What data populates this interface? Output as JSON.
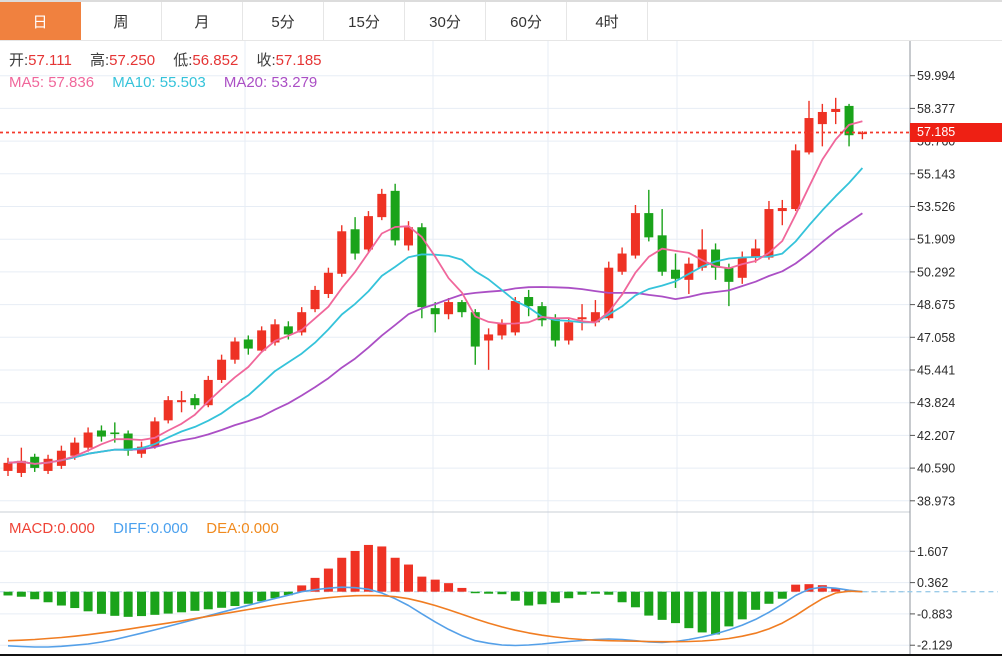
{
  "tabs": [
    {
      "label": "日",
      "active": true
    },
    {
      "label": "周",
      "active": false
    },
    {
      "label": "月",
      "active": false
    },
    {
      "label": "5分",
      "active": false
    },
    {
      "label": "15分",
      "active": false
    },
    {
      "label": "30分",
      "active": false
    },
    {
      "label": "60分",
      "active": false
    },
    {
      "label": "4时",
      "active": false
    }
  ],
  "legend": {
    "ohlc": [
      {
        "label": "开:",
        "value": "57.111"
      },
      {
        "label": "高:",
        "value": "57.250"
      },
      {
        "label": "低:",
        "value": "56.852"
      },
      {
        "label": "收:",
        "value": "57.185"
      }
    ],
    "ma": [
      {
        "label": "MA5:",
        "value": "57.836",
        "color": "#f0679b"
      },
      {
        "label": "MA10:",
        "value": "55.503",
        "color": "#35c3da"
      },
      {
        "label": "MA20:",
        "value": "53.279",
        "color": "#ab4fc5"
      }
    ],
    "macd": [
      {
        "label": "MACD:",
        "value": "0.000",
        "color": "#ef4437"
      },
      {
        "label": "DIFF:",
        "value": "0.000",
        "color": "#4aa0ee"
      },
      {
        "label": "DEA:",
        "value": "0.000",
        "color": "#f08a1e"
      }
    ]
  },
  "axis": {
    "price_ticks": [
      "59.994",
      "58.377",
      "56.760",
      "55.143",
      "53.526",
      "51.909",
      "50.292",
      "48.675",
      "47.058",
      "45.441",
      "43.824",
      "42.207",
      "40.590",
      "38.973"
    ],
    "macd_ticks": [
      "1.607",
      "0.362",
      "-0.883",
      "-2.129"
    ],
    "last_price": "57.185"
  },
  "colors": {
    "up": "#ee3224",
    "down": "#1aa31a",
    "ma5": "#f0679b",
    "ma10": "#35c3da",
    "ma20": "#ab4fc5",
    "diff": "#55a0e8",
    "dea": "#f07d22",
    "grid": "#e7edf5",
    "axis_text": "#2b2b2b",
    "price_line": "#f4392b",
    "badge_bg": "#ee2014"
  },
  "chart_data": {
    "type": "candlestick",
    "note": "Chinese convention: red = up candle, green = down candle. ohlc items are [open, high, low, close].",
    "timeframe_selected": "日",
    "price_axis_range": [
      38.973,
      59.994
    ],
    "price_tick_step": 1.617,
    "last_price": 57.185,
    "ma_periods": [
      5,
      10,
      20
    ],
    "ohlc": [
      [
        40.45,
        41.1,
        40.2,
        40.85
      ],
      [
        40.35,
        41.6,
        40.15,
        40.95
      ],
      [
        41.15,
        41.3,
        40.4,
        40.6
      ],
      [
        40.45,
        41.25,
        40.3,
        41.05
      ],
      [
        40.7,
        41.7,
        40.55,
        41.45
      ],
      [
        41.2,
        42.1,
        41.0,
        41.85
      ],
      [
        41.6,
        42.6,
        41.4,
        42.35
      ],
      [
        42.45,
        42.7,
        41.9,
        42.15
      ],
      [
        42.35,
        42.85,
        41.85,
        42.3
      ],
      [
        42.3,
        42.45,
        41.2,
        41.45
      ],
      [
        41.3,
        41.9,
        41.1,
        41.65
      ],
      [
        41.65,
        43.1,
        41.55,
        42.9
      ],
      [
        42.95,
        44.15,
        42.8,
        43.95
      ],
      [
        43.85,
        44.4,
        43.35,
        43.95
      ],
      [
        44.05,
        44.25,
        43.5,
        43.7
      ],
      [
        43.7,
        45.15,
        43.6,
        44.95
      ],
      [
        44.95,
        46.2,
        44.8,
        45.95
      ],
      [
        45.95,
        47.05,
        45.75,
        46.85
      ],
      [
        46.95,
        47.15,
        46.2,
        46.5
      ],
      [
        46.4,
        47.6,
        46.3,
        47.4
      ],
      [
        46.8,
        47.95,
        46.65,
        47.7
      ],
      [
        47.6,
        47.85,
        46.95,
        47.2
      ],
      [
        47.3,
        48.55,
        47.15,
        48.3
      ],
      [
        48.45,
        49.6,
        48.3,
        49.4
      ],
      [
        49.2,
        50.5,
        49.0,
        50.25
      ],
      [
        50.2,
        52.6,
        50.05,
        52.3
      ],
      [
        52.4,
        53.0,
        50.9,
        51.2
      ],
      [
        51.4,
        53.3,
        51.25,
        53.05
      ],
      [
        53.0,
        54.4,
        52.85,
        54.15
      ],
      [
        54.3,
        54.65,
        51.6,
        51.85
      ],
      [
        51.6,
        52.8,
        51.35,
        52.5
      ],
      [
        52.5,
        52.7,
        48.0,
        48.55
      ],
      [
        48.5,
        48.8,
        47.3,
        48.2
      ],
      [
        48.2,
        49.0,
        47.95,
        48.8
      ],
      [
        48.8,
        48.9,
        48.05,
        48.3
      ],
      [
        48.3,
        48.45,
        45.7,
        46.6
      ],
      [
        46.9,
        47.5,
        45.45,
        47.2
      ],
      [
        47.15,
        47.95,
        46.95,
        47.75
      ],
      [
        47.3,
        49.05,
        47.15,
        48.85
      ],
      [
        49.05,
        49.4,
        48.1,
        48.6
      ],
      [
        48.6,
        48.8,
        47.6,
        47.9
      ],
      [
        48.0,
        48.2,
        46.6,
        46.9
      ],
      [
        46.9,
        48.0,
        46.7,
        47.8
      ],
      [
        47.95,
        48.7,
        47.4,
        48.05
      ],
      [
        47.8,
        48.9,
        47.6,
        48.3
      ],
      [
        48.0,
        50.8,
        47.9,
        50.5
      ],
      [
        50.3,
        51.5,
        50.15,
        51.2
      ],
      [
        51.1,
        53.6,
        50.95,
        53.2
      ],
      [
        53.2,
        54.35,
        51.8,
        52.0
      ],
      [
        52.1,
        53.4,
        50.1,
        50.3
      ],
      [
        50.4,
        51.2,
        49.5,
        49.95
      ],
      [
        49.9,
        51.0,
        49.2,
        50.7
      ],
      [
        50.5,
        52.4,
        50.35,
        51.4
      ],
      [
        51.4,
        51.7,
        49.9,
        50.5
      ],
      [
        50.5,
        50.7,
        48.6,
        49.8
      ],
      [
        50.0,
        51.3,
        49.7,
        51.0
      ],
      [
        51.05,
        51.9,
        50.75,
        51.45
      ],
      [
        51.0,
        53.8,
        50.9,
        53.4
      ],
      [
        53.3,
        53.85,
        52.6,
        53.45
      ],
      [
        53.4,
        56.6,
        53.3,
        56.3
      ],
      [
        56.2,
        58.75,
        56.1,
        57.9
      ],
      [
        57.6,
        58.6,
        56.5,
        58.2
      ],
      [
        58.2,
        58.9,
        57.6,
        58.35
      ],
      [
        58.5,
        58.6,
        56.5,
        57.05
      ],
      [
        57.111,
        57.25,
        56.852,
        57.185
      ]
    ],
    "macd": {
      "axis_range": [
        -2.129,
        1.607
      ],
      "hist": [
        -0.15,
        -0.2,
        -0.3,
        -0.42,
        -0.55,
        -0.65,
        -0.78,
        -0.88,
        -0.96,
        -1.0,
        -0.97,
        -0.92,
        -0.87,
        -0.82,
        -0.76,
        -0.7,
        -0.64,
        -0.57,
        -0.48,
        -0.38,
        -0.26,
        -0.14,
        0.25,
        0.55,
        0.92,
        1.35,
        1.62,
        1.86,
        1.8,
        1.35,
        1.08,
        0.6,
        0.48,
        0.34,
        0.15,
        -0.06,
        -0.08,
        -0.1,
        -0.36,
        -0.55,
        -0.5,
        -0.44,
        -0.26,
        -0.12,
        -0.08,
        -0.12,
        -0.42,
        -0.62,
        -0.95,
        -1.12,
        -1.25,
        -1.45,
        -1.62,
        -1.7,
        -1.38,
        -1.1,
        -0.72,
        -0.48,
        -0.28,
        0.28,
        0.3,
        0.26,
        0.14,
        0.06,
        0.0
      ],
      "diff": [
        -2.15,
        -2.18,
        -2.2,
        -2.2,
        -2.17,
        -2.13,
        -2.08,
        -2.0,
        -1.9,
        -1.78,
        -1.65,
        -1.52,
        -1.38,
        -1.24,
        -1.1,
        -0.96,
        -0.82,
        -0.68,
        -0.54,
        -0.4,
        -0.27,
        -0.14,
        0.0,
        0.08,
        0.14,
        0.18,
        0.16,
        0.1,
        -0.05,
        -0.28,
        -0.55,
        -0.88,
        -1.2,
        -1.5,
        -1.75,
        -1.95,
        -2.05,
        -2.12,
        -2.14,
        -2.12,
        -2.08,
        -2.03,
        -1.98,
        -1.94,
        -1.9,
        -1.88,
        -1.9,
        -1.95,
        -2.0,
        -2.02,
        -1.98,
        -1.9,
        -1.8,
        -1.68,
        -1.52,
        -1.33,
        -1.1,
        -0.82,
        -0.5,
        -0.15,
        0.1,
        0.18,
        0.14,
        0.06,
        0.0
      ],
      "dea": [
        -1.95,
        -1.93,
        -1.9,
        -1.86,
        -1.82,
        -1.77,
        -1.71,
        -1.64,
        -1.57,
        -1.49,
        -1.41,
        -1.33,
        -1.25,
        -1.16,
        -1.07,
        -0.98,
        -0.89,
        -0.8,
        -0.71,
        -0.62,
        -0.53,
        -0.45,
        -0.37,
        -0.3,
        -0.24,
        -0.19,
        -0.16,
        -0.15,
        -0.16,
        -0.2,
        -0.28,
        -0.4,
        -0.55,
        -0.72,
        -0.9,
        -1.08,
        -1.25,
        -1.4,
        -1.53,
        -1.64,
        -1.73,
        -1.8,
        -1.86,
        -1.9,
        -1.93,
        -1.95,
        -1.96,
        -1.97,
        -1.98,
        -1.99,
        -1.99,
        -1.98,
        -1.96,
        -1.92,
        -1.86,
        -1.77,
        -1.65,
        -1.48,
        -1.25,
        -0.95,
        -0.6,
        -0.28,
        -0.05,
        0.02,
        0.0
      ]
    }
  }
}
